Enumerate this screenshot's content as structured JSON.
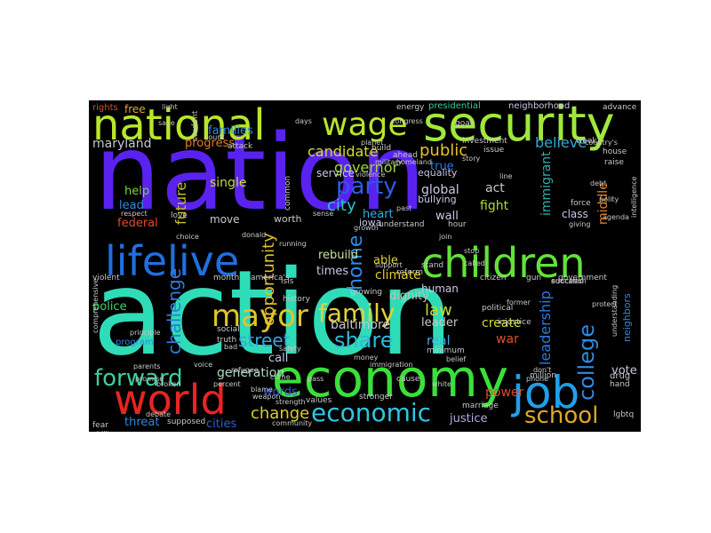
{
  "words": [
    {
      "text": "nation",
      "color": "#5a22f0"
    },
    {
      "text": "action",
      "color": "#2fdcb8"
    },
    {
      "text": "national",
      "color": "#b8e62a"
    },
    {
      "text": "security",
      "color": "#a0e83c"
    },
    {
      "text": "wage",
      "color": "#b8e62a"
    },
    {
      "text": "lifelive",
      "color": "#1f6fe0"
    },
    {
      "text": "children",
      "color": "#62e23a"
    },
    {
      "text": "economy",
      "color": "#3ae03a"
    },
    {
      "text": "world",
      "color": "#e82424"
    },
    {
      "text": "job",
      "color": "#1f9fe8"
    },
    {
      "text": "mayor",
      "color": "#e0c52a"
    },
    {
      "text": "family",
      "color": "#e0d33a"
    },
    {
      "text": "economic",
      "color": "#2fc6e0"
    },
    {
      "text": "school",
      "color": "#e0a82a"
    },
    {
      "text": "forward",
      "color": "#3ad0a0"
    },
    {
      "text": "party",
      "color": "#2f5ae8"
    },
    {
      "text": "share",
      "color": "#30b8d8"
    },
    {
      "text": "street",
      "color": "#2fa8e0"
    },
    {
      "text": "college",
      "color": "#2f8ae0"
    },
    {
      "text": "change",
      "color": "#d8d02a"
    },
    {
      "text": "challenge",
      "color": "#2f7ae0"
    },
    {
      "text": "home",
      "color": "#2f8ae8"
    },
    {
      "text": "candidate",
      "color": "#d0e02a"
    },
    {
      "text": "governor",
      "color": "#a0d83a"
    },
    {
      "text": "public",
      "color": "#e8c02a"
    },
    {
      "text": "believe",
      "color": "#2fa8d0"
    },
    {
      "text": "opportunity",
      "color": "#e0c02a"
    },
    {
      "text": "future",
      "color": "#c8c02a"
    },
    {
      "text": "city",
      "color": "#2fc0c8"
    },
    {
      "text": "law",
      "color": "#c0d83a"
    },
    {
      "text": "leadership",
      "color": "#2f7ae0"
    },
    {
      "text": "immigrant",
      "color": "#2fb0a8"
    },
    {
      "text": "middle",
      "color": "#e0802a"
    },
    {
      "text": "maryland",
      "color": "#c8c8c8"
    },
    {
      "text": "generation",
      "color": "#b0d8c0"
    },
    {
      "text": "baltimore",
      "color": "#c8c8c8"
    },
    {
      "text": "progress",
      "color": "#e07a2a"
    },
    {
      "text": "families",
      "color": "#2f8ae0"
    },
    {
      "text": "free",
      "color": "#e0a82a"
    },
    {
      "text": "single",
      "color": "#c8d83a"
    },
    {
      "text": "help",
      "color": "#7ad83a"
    },
    {
      "text": "lead",
      "color": "#2f8ae0"
    },
    {
      "text": "police",
      "color": "#3ad86a"
    },
    {
      "text": "federal",
      "color": "#e04a2a"
    },
    {
      "text": "create",
      "color": "#d0d83a"
    },
    {
      "text": "real",
      "color": "#3ab0e0"
    },
    {
      "text": "war",
      "color": "#e0502a"
    },
    {
      "text": "power",
      "color": "#e04a2a"
    },
    {
      "text": "justice",
      "color": "#b0b0e0"
    },
    {
      "text": "threat",
      "color": "#2f8ae0"
    },
    {
      "text": "cities",
      "color": "#2f5ae0"
    },
    {
      "text": "words",
      "color": "#3a5ae0"
    },
    {
      "text": "call",
      "color": "#c8c8e8"
    },
    {
      "text": "vote",
      "color": "#c8c8e8"
    },
    {
      "text": "fight",
      "color": "#b0d83a"
    },
    {
      "text": "act",
      "color": "#c8c8c8"
    },
    {
      "text": "global",
      "color": "#c8c8e8"
    },
    {
      "text": "wall",
      "color": "#c8c8e8"
    },
    {
      "text": "true",
      "color": "#2f7ae0"
    },
    {
      "text": "heart",
      "color": "#2fb0e0"
    },
    {
      "text": "rebuild",
      "color": "#c8e0a0"
    },
    {
      "text": "times",
      "color": "#c8c8e8"
    },
    {
      "text": "able",
      "color": "#e0d03a"
    },
    {
      "text": "climate",
      "color": "#e0c82a"
    },
    {
      "text": "human",
      "color": "#c8c8e8"
    },
    {
      "text": "leader",
      "color": "#c8c8c8"
    },
    {
      "text": "dignity",
      "color": "#c8c0b8"
    },
    {
      "text": "service",
      "color": "#c8c8e8"
    },
    {
      "text": "equality",
      "color": "#c8c8e8"
    },
    {
      "text": "bullying",
      "color": "#c8c8e8"
    },
    {
      "text": "iowa",
      "color": "#c8c8e8"
    },
    {
      "text": "move",
      "color": "#c8c8c8"
    },
    {
      "text": "worth",
      "color": "#c8c8c8"
    },
    {
      "text": "class",
      "color": "#c8c8e8"
    },
    {
      "text": "presidential",
      "color": "#2fd0a0"
    },
    {
      "text": "energy",
      "color": "#c8c8c8"
    },
    {
      "text": "neighborhood",
      "color": "#c8c8e8"
    },
    {
      "text": "advance",
      "color": "#c8c8c8"
    },
    {
      "text": "investment",
      "color": "#c8c8c8"
    },
    {
      "text": "issue",
      "color": "#c8c8c8"
    },
    {
      "text": "rights",
      "color": "#e04a2a"
    },
    {
      "text": "build",
      "color": "#c8c8c8"
    },
    {
      "text": "goal",
      "color": "#c8c8c8"
    },
    {
      "text": "america's",
      "color": "#c8c8c8"
    },
    {
      "text": "history",
      "color": "#c8c8c8"
    },
    {
      "text": "social",
      "color": "#c8c8c8"
    },
    {
      "text": "truth",
      "color": "#c8c8c8"
    },
    {
      "text": "program",
      "color": "#2f8ae0"
    },
    {
      "text": "month",
      "color": "#c8c8c8"
    },
    {
      "text": "violent",
      "color": "#c8c8c8"
    },
    {
      "text": "stand",
      "color": "#c8c8c8"
    },
    {
      "text": "reform",
      "color": "#c8c8c8"
    },
    {
      "text": "citizen",
      "color": "#c8c8c8"
    },
    {
      "text": "gun",
      "color": "#c8c8c8"
    },
    {
      "text": "government",
      "color": "#c8c8c8"
    },
    {
      "text": "neighbors",
      "color": "#2f8ae0"
    },
    {
      "text": "drug",
      "color": "#c8c8c8"
    },
    {
      "text": "hand",
      "color": "#c8c8c8"
    },
    {
      "text": "lgbtq",
      "color": "#c8c8c8"
    },
    {
      "text": "supposed",
      "color": "#c8c8c8"
    },
    {
      "text": "fear",
      "color": "#c8c8c8"
    },
    {
      "text": "community",
      "color": "#c8c8c8"
    },
    {
      "text": "stronger",
      "color": "#c8c8c8"
    },
    {
      "text": "values",
      "color": "#c8c8c8"
    },
    {
      "text": "marriage",
      "color": "#c8c8c8"
    },
    {
      "text": "million",
      "color": "#c8c8c8"
    },
    {
      "text": "minimum",
      "color": "#c8c8c8"
    },
    {
      "text": "political",
      "color": "#c8c8c8"
    },
    {
      "text": "injustice",
      "color": "#c8c8c8"
    },
    {
      "text": "crime",
      "color": "#c8c8c8"
    },
    {
      "text": "cause",
      "color": "#c8c8c8"
    },
    {
      "text": "week",
      "color": "#c8c8c8"
    },
    {
      "text": "pass",
      "color": "#c8c8c8"
    },
    {
      "text": "growing",
      "color": "#c8c8c8"
    },
    {
      "text": "understand",
      "color": "#c8c8c8"
    },
    {
      "text": "force",
      "color": "#c8c8c8"
    },
    {
      "text": "succeed",
      "color": "#c8c8c8"
    },
    {
      "text": "raise",
      "color": "#c8c8c8"
    },
    {
      "text": "house",
      "color": "#c8c8c8"
    },
    {
      "text": "education",
      "color": "#c8c8c8"
    },
    {
      "text": "isis",
      "color": "#c8c8c8"
    },
    {
      "text": "love",
      "color": "#c8c8c8"
    },
    {
      "text": "student",
      "color": "#c8c8c8"
    },
    {
      "text": "days",
      "color": "#c8c8c8"
    },
    {
      "text": "attack",
      "color": "#c8c8c8"
    },
    {
      "text": "planet",
      "color": "#c8c8c8"
    },
    {
      "text": "ahead",
      "color": "#c8c8c8"
    },
    {
      "text": "join",
      "color": "#c8c8c8"
    },
    {
      "text": "hour",
      "color": "#c8c8c8"
    },
    {
      "text": "stop",
      "color": "#c8c8c8"
    },
    {
      "text": "called",
      "color": "#c8c8c8"
    },
    {
      "text": "phone",
      "color": "#c8c8c8"
    },
    {
      "text": "former",
      "color": "#c8c8c8"
    },
    {
      "text": "running",
      "color": "#c8c8c8"
    },
    {
      "text": "common",
      "color": "#c8c8c8"
    },
    {
      "text": "donald",
      "color": "#c8c8c8"
    },
    {
      "text": "choice",
      "color": "#c8c8c8"
    },
    {
      "text": "respect",
      "color": "#c8c8c8"
    },
    {
      "text": "principle",
      "color": "#c8c8c8"
    },
    {
      "text": "percent",
      "color": "#c8c8c8"
    },
    {
      "text": "refugee",
      "color": "#c8c8c8"
    },
    {
      "text": "immigration",
      "color": "#c8c8c8"
    },
    {
      "text": "support",
      "color": "#c8c8c8"
    },
    {
      "text": "white",
      "color": "#c8c8c8"
    },
    {
      "text": "belief",
      "color": "#c8c8c8"
    },
    {
      "text": "money",
      "color": "#c8c8c8"
    },
    {
      "text": "debate",
      "color": "#c8c8c8"
    },
    {
      "text": "parents",
      "color": "#c8c8c8"
    },
    {
      "text": "promise",
      "color": "#c8c8c8"
    },
    {
      "text": "broken",
      "color": "#c8c8c8"
    },
    {
      "text": "country's",
      "color": "#c8c8c8"
    },
    {
      "text": "agenda",
      "color": "#c8c8c8"
    },
    {
      "text": "polity",
      "color": "#c8c8c8"
    },
    {
      "text": "intelligence",
      "color": "#c8c8c8"
    },
    {
      "text": "comprehensive",
      "color": "#c8c8c8"
    },
    {
      "text": "ability",
      "color": "#c8c8c8"
    },
    {
      "text": "count",
      "color": "#c8c8c8"
    },
    {
      "text": "congress",
      "color": "#c8c8c8"
    },
    {
      "text": "growth",
      "color": "#c8c8c8"
    },
    {
      "text": "safety",
      "color": "#c8c8c8"
    },
    {
      "text": "strength",
      "color": "#c8c8c8"
    },
    {
      "text": "protect",
      "color": "#c8c8c8"
    },
    {
      "text": "giving",
      "color": "#c8c8c8"
    },
    {
      "text": "line",
      "color": "#c8c8c8"
    },
    {
      "text": "debt",
      "color": "#c8c8c8"
    },
    {
      "text": "story",
      "color": "#c8c8c8"
    },
    {
      "text": "violence",
      "color": "#c8c8c8"
    },
    {
      "text": "military",
      "color": "#c8c8c8"
    },
    {
      "text": "homeland",
      "color": "#c8c8c8"
    },
    {
      "text": "understanding",
      "color": "#c8c8c8"
    },
    {
      "text": "blame",
      "color": "#c8c8c8"
    },
    {
      "text": "weapon",
      "color": "#c8c8c8"
    },
    {
      "text": "voice",
      "color": "#c8c8c8"
    },
    {
      "text": "bad",
      "color": "#c8c8c8"
    },
    {
      "text": "past",
      "color": "#c8c8c8"
    },
    {
      "text": "light",
      "color": "#c8c8c8"
    },
    {
      "text": "save",
      "color": "#c8c8c8"
    },
    {
      "text": "sense",
      "color": "#c8c8c8"
    },
    {
      "text": "don't",
      "color": "#c8c8c8"
    }
  ]
}
